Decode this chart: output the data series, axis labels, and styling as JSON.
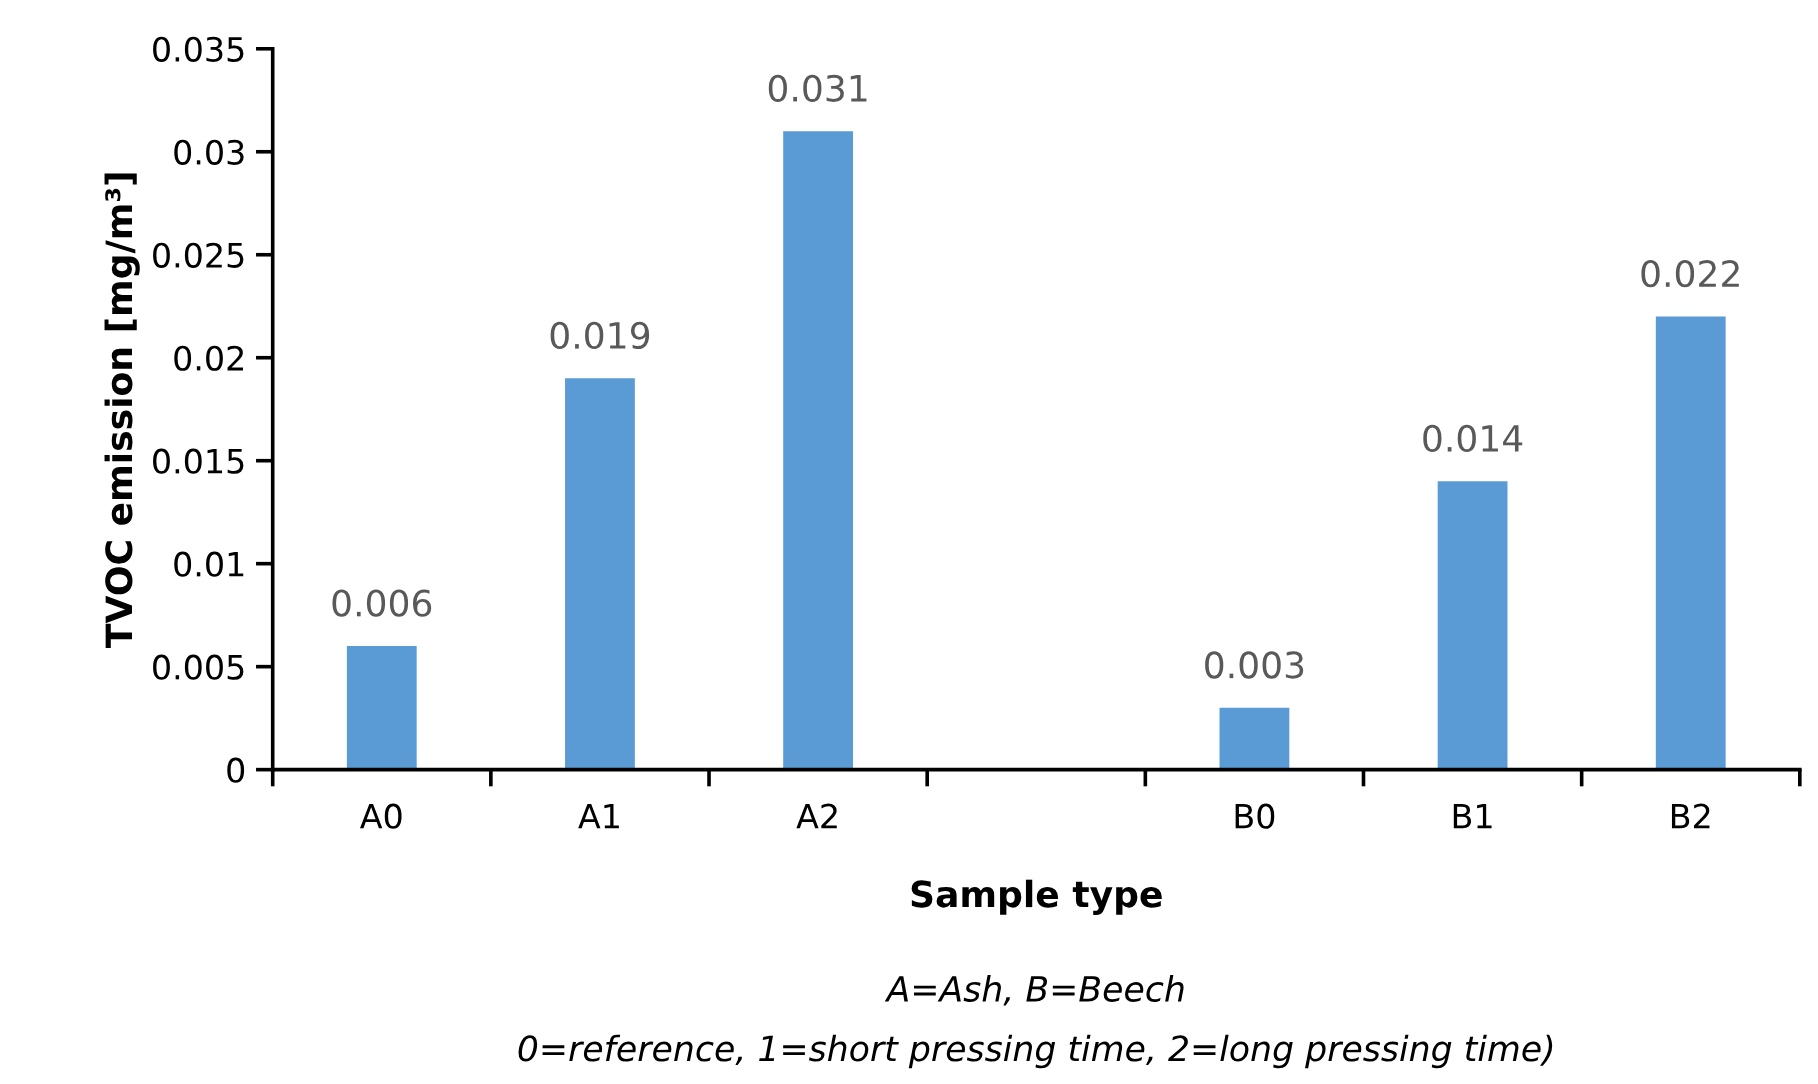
{
  "chart_data": {
    "type": "bar",
    "xlabel": "Sample type",
    "ylabel": "TVOC emission [mg/m³]",
    "annotations": [
      "A=Ash, B=Beech",
      "0=reference, 1=short pressing time, 2=long pressing time)"
    ],
    "categories": [
      "A0",
      "A1",
      "A2",
      null,
      "B0",
      "B1",
      "B2"
    ],
    "values": [
      0.006,
      0.019,
      0.031,
      null,
      0.003,
      0.014,
      0.022
    ],
    "color": "#5b9bd5",
    "ylim": [
      0,
      0.035
    ],
    "yticks": [
      0,
      0.005,
      0.01,
      0.015,
      0.02,
      0.025,
      0.03,
      0.035
    ],
    "data_labels": true,
    "grid": false
  }
}
